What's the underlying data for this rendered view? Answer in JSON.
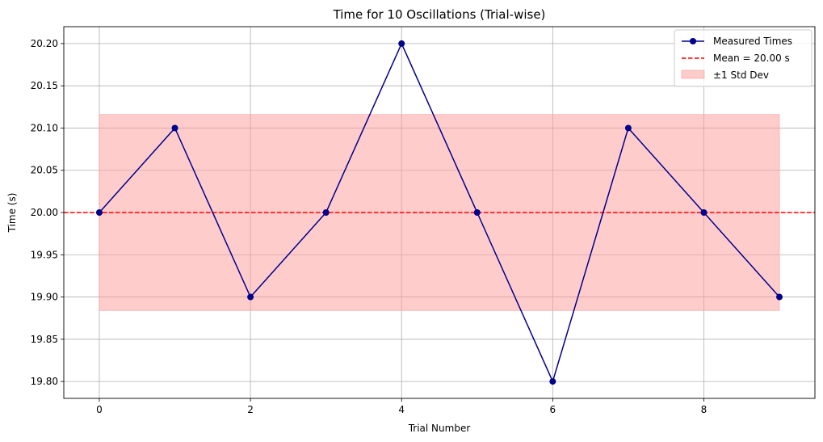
{
  "chart_data": {
    "type": "line",
    "title": "Time for 10 Oscillations (Trial-wise)",
    "xlabel": "Trial Number",
    "ylabel": "Time (s)",
    "xlim": [
      -0.47,
      9.47
    ],
    "ylim": [
      19.78,
      20.22
    ],
    "xticks": [
      0,
      2,
      4,
      6,
      8
    ],
    "yticks": [
      19.8,
      19.85,
      19.9,
      19.95,
      20.0,
      20.05,
      20.1,
      20.15,
      20.2
    ],
    "xtick_labels": [
      "0",
      "2",
      "4",
      "6",
      "8"
    ],
    "ytick_labels": [
      "19.80",
      "19.85",
      "19.90",
      "19.95",
      "20.00",
      "20.05",
      "20.10",
      "20.15",
      "20.20"
    ],
    "grid": true,
    "legend_position": "top-right",
    "series": [
      {
        "name": "Measured Times",
        "type": "line-marker",
        "color": "#00008b",
        "x": [
          0,
          1,
          2,
          3,
          4,
          5,
          6,
          7,
          8,
          9
        ],
        "values": [
          20.0,
          20.1,
          19.9,
          20.0,
          20.2,
          20.0,
          19.8,
          20.1,
          20.0,
          19.9
        ]
      }
    ],
    "mean_line": {
      "name": "Mean = 20.00 s",
      "value": 20.0,
      "color": "#ff0000",
      "style": "dashed"
    },
    "std_band": {
      "name": "±1 Std Dev",
      "lower": 19.884,
      "upper": 20.116,
      "x_range": [
        0,
        9
      ],
      "color": "#ff9999"
    }
  }
}
